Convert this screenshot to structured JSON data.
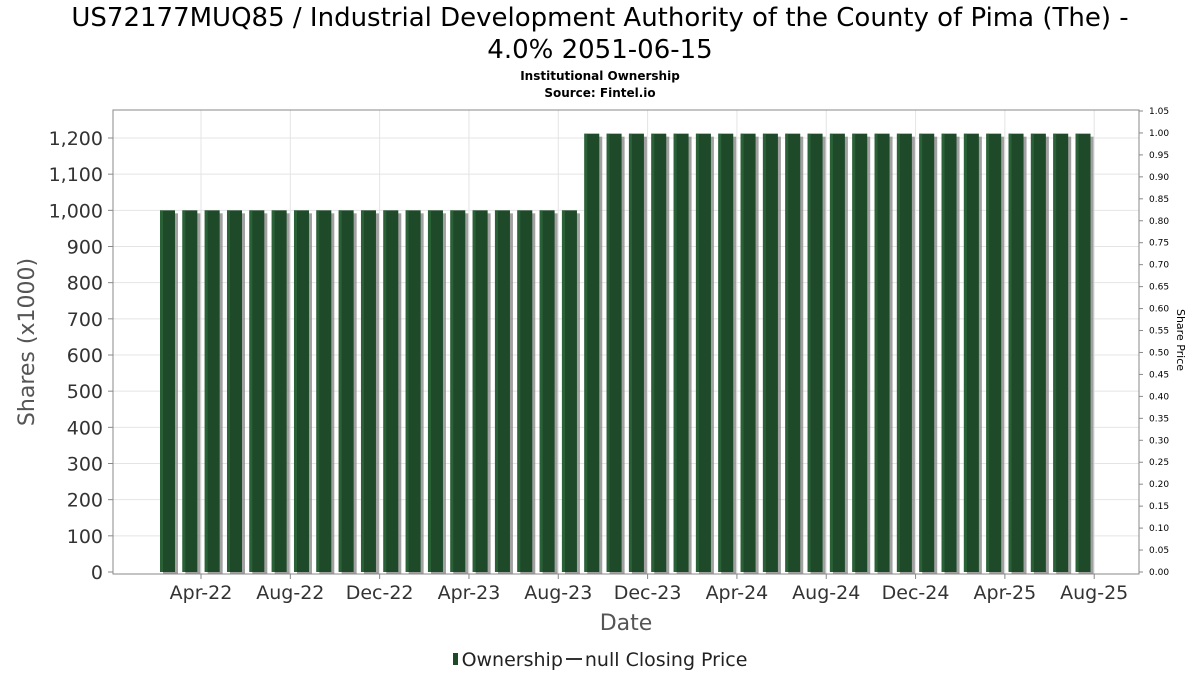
{
  "chart_data": {
    "type": "bar",
    "title_line1": "US72177MUQ85 / Industrial Development Authority of the County of Pima (The) -",
    "title_line2": "4.0% 2051-06-15",
    "subtitle": "Institutional Ownership",
    "source": "Source: Fintel.io",
    "xlabel": "Date",
    "ylabel": "Shares (x1000)",
    "y2label": "Share Price",
    "ylim": [
      0,
      1300
    ],
    "y2lim": [
      0,
      1.05
    ],
    "yticks": [
      "0",
      "100",
      "200",
      "300",
      "400",
      "500",
      "600",
      "700",
      "800",
      "900",
      "1,000",
      "1,100",
      "1,200"
    ],
    "y2ticks": [
      "0.00",
      "0.05",
      "0.10",
      "0.15",
      "0.20",
      "0.25",
      "0.30",
      "0.35",
      "0.40",
      "0.45",
      "0.50",
      "0.55",
      "0.60",
      "0.65",
      "0.70",
      "0.75",
      "0.80",
      "0.85",
      "0.90",
      "0.95",
      "1.00",
      "1.05"
    ],
    "xticks": [
      {
        "label": "Apr-22",
        "index": 1.5
      },
      {
        "label": "Aug-22",
        "index": 5.5
      },
      {
        "label": "Dec-22",
        "index": 9.5
      },
      {
        "label": "Apr-23",
        "index": 13.5
      },
      {
        "label": "Aug-23",
        "index": 17.5
      },
      {
        "label": "Dec-23",
        "index": 21.5
      },
      {
        "label": "Apr-24",
        "index": 25.5
      },
      {
        "label": "Aug-24",
        "index": 29.5
      },
      {
        "label": "Dec-24",
        "index": 33.5
      },
      {
        "label": "Apr-25",
        "index": 37.5
      },
      {
        "label": "Aug-25",
        "index": 41.5
      }
    ],
    "grid": true,
    "series": [
      {
        "name": "Ownership",
        "color": "#1e4a2a",
        "values": [
          1000,
          1000,
          1000,
          1000,
          1000,
          1000,
          1000,
          1000,
          1000,
          1000,
          1000,
          1000,
          1000,
          1000,
          1000,
          1000,
          1000,
          1000,
          1000,
          1212,
          1212,
          1212,
          1212,
          1212,
          1212,
          1212,
          1212,
          1212,
          1212,
          1212,
          1212,
          1212,
          1212,
          1212,
          1212,
          1212,
          1212,
          1212,
          1212,
          1212,
          1212,
          1212
        ]
      }
    ],
    "legend": {
      "ownership": "Ownership",
      "price": "null Closing Price"
    }
  }
}
